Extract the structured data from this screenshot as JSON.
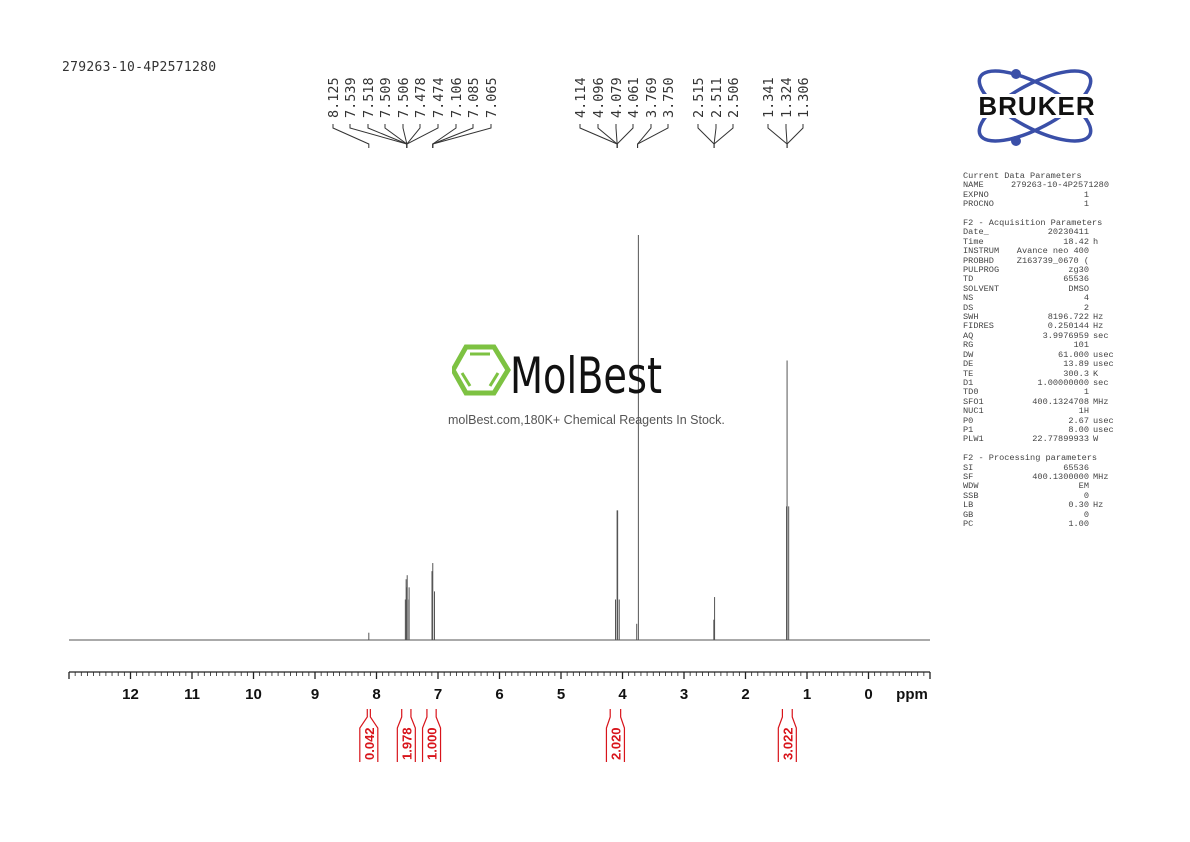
{
  "sample_name": "279263-10-4P2571280",
  "logo": {
    "brand": "BRUKER",
    "color": "#3a4fa8"
  },
  "watermark": {
    "brand": "MolBest",
    "tagline": "molBest.com,180K+ Chemical Reagents In Stock.",
    "accent": "#7dc242"
  },
  "parameters": {
    "current": {
      "title": "Current Data Parameters",
      "rows": [
        [
          "NAME",
          "279263-10-4P2571280",
          ""
        ],
        [
          "EXPNO",
          "1",
          ""
        ],
        [
          "PROCNO",
          "1",
          ""
        ]
      ]
    },
    "acquisition": {
      "title": "F2 - Acquisition Parameters",
      "rows": [
        [
          "Date_",
          "20230411",
          ""
        ],
        [
          "Time",
          "18.42",
          "h"
        ],
        [
          "INSTRUM",
          "Avance neo 400",
          ""
        ],
        [
          "PROBHD",
          "Z163739_0670 (",
          ""
        ],
        [
          "PULPROG",
          "zg30",
          ""
        ],
        [
          "TD",
          "65536",
          ""
        ],
        [
          "SOLVENT",
          "DMSO",
          ""
        ],
        [
          "NS",
          "4",
          ""
        ],
        [
          "DS",
          "2",
          ""
        ],
        [
          "SWH",
          "8196.722",
          "Hz"
        ],
        [
          "FIDRES",
          "0.250144",
          "Hz"
        ],
        [
          "AQ",
          "3.9976959",
          "sec"
        ],
        [
          "RG",
          "101",
          ""
        ],
        [
          "DW",
          "61.000",
          "usec"
        ],
        [
          "DE",
          "13.89",
          "usec"
        ],
        [
          "TE",
          "300.3",
          "K"
        ],
        [
          "D1",
          "1.00000000",
          "sec"
        ],
        [
          "TD0",
          "1",
          ""
        ],
        [
          "SFO1",
          "400.1324708",
          "MHz"
        ],
        [
          "NUC1",
          "1H",
          ""
        ],
        [
          "P0",
          "2.67",
          "usec"
        ],
        [
          "P1",
          "8.00",
          "usec"
        ],
        [
          "PLW1",
          "22.77899933",
          "W"
        ]
      ]
    },
    "processing": {
      "title": "F2 - Processing parameters",
      "rows": [
        [
          "SI",
          "65536",
          ""
        ],
        [
          "SF",
          "400.1300000",
          "MHz"
        ],
        [
          "WDW",
          "EM",
          ""
        ],
        [
          "SSB",
          "0",
          ""
        ],
        [
          "LB",
          "0.30",
          "Hz"
        ],
        [
          "GB",
          "0",
          ""
        ],
        [
          "PC",
          "1.00",
          ""
        ]
      ]
    }
  },
  "chart_data": {
    "type": "line",
    "subtype": "1H NMR spectrum",
    "xlabel": "ppm",
    "xlim": [
      13.0,
      -1.0
    ],
    "x_reversed": true,
    "xticks": [
      12,
      11,
      10,
      9,
      8,
      7,
      6,
      5,
      4,
      3,
      2,
      1,
      0
    ],
    "minor_tick_step": 0.1,
    "line_color": "#555555",
    "integral_color": "#d8141b",
    "peaks": [
      {
        "ppm": 8.125,
        "rel_intensity": 1.8
      },
      {
        "ppm": 7.539,
        "rel_intensity": 10
      },
      {
        "ppm": 7.518,
        "rel_intensity": 15
      },
      {
        "ppm": 7.509,
        "rel_intensity": 16
      },
      {
        "ppm": 7.506,
        "rel_intensity": 13
      },
      {
        "ppm": 7.478,
        "rel_intensity": 13
      },
      {
        "ppm": 7.474,
        "rel_intensity": 10
      },
      {
        "ppm": 7.106,
        "rel_intensity": 17
      },
      {
        "ppm": 7.085,
        "rel_intensity": 19
      },
      {
        "ppm": 7.065,
        "rel_intensity": 12
      },
      {
        "ppm": 4.114,
        "rel_intensity": 10
      },
      {
        "ppm": 4.096,
        "rel_intensity": 32
      },
      {
        "ppm": 4.079,
        "rel_intensity": 32
      },
      {
        "ppm": 4.061,
        "rel_intensity": 10
      },
      {
        "ppm": 3.769,
        "rel_intensity": 4
      },
      {
        "ppm": 3.75,
        "rel_intensity": 100
      },
      {
        "ppm": 2.515,
        "rel_intensity": 5
      },
      {
        "ppm": 2.511,
        "rel_intensity": 10.6
      },
      {
        "ppm": 2.506,
        "rel_intensity": 5
      },
      {
        "ppm": 1.341,
        "rel_intensity": 33
      },
      {
        "ppm": 1.324,
        "rel_intensity": 69
      },
      {
        "ppm": 1.306,
        "rel_intensity": 33
      }
    ],
    "peak_label_groups": [
      {
        "labels": [
          "8.125"
        ],
        "at": 8.125
      },
      {
        "labels": [
          "7.539",
          "7.518",
          "7.509",
          "7.506",
          "7.478",
          "7.474"
        ],
        "at": 7.506
      },
      {
        "labels": [
          "7.106",
          "7.085",
          "7.065"
        ],
        "at": 7.085
      },
      {
        "labels": [
          "4.114",
          "4.096",
          "4.079",
          "4.061"
        ],
        "at": 4.087
      },
      {
        "labels": [
          "3.769",
          "3.750"
        ],
        "at": 3.755
      },
      {
        "labels": [
          "2.515",
          "2.511",
          "2.506"
        ],
        "at": 2.511
      },
      {
        "labels": [
          "1.341",
          "1.324",
          "1.306"
        ],
        "at": 1.324
      }
    ],
    "integrals": [
      {
        "from": 8.15,
        "to": 8.1,
        "value": "0.042"
      },
      {
        "from": 7.59,
        "to": 7.44,
        "value": "1.978"
      },
      {
        "from": 7.18,
        "to": 7.03,
        "value": "1.000"
      },
      {
        "from": 4.2,
        "to": 4.03,
        "value": "2.020"
      },
      {
        "from": 1.4,
        "to": 1.24,
        "value": "3.022"
      }
    ]
  }
}
